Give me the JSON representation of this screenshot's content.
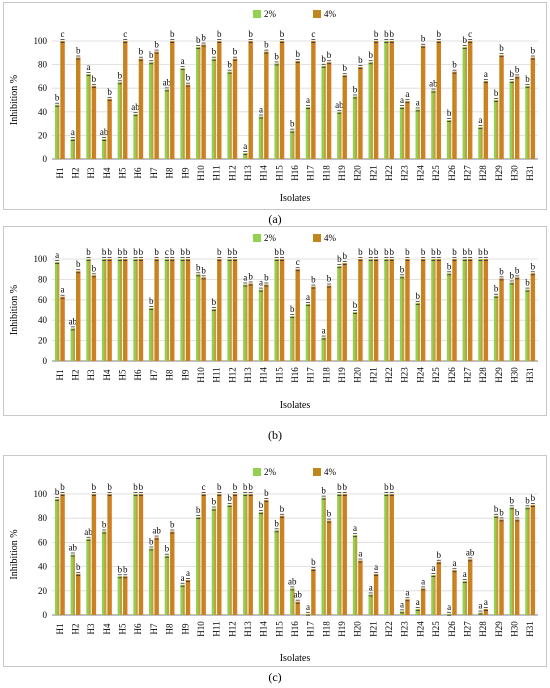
{
  "figure": {
    "captions": [
      "(a)",
      "(b)",
      "(c)"
    ]
  },
  "colors": {
    "s2": "#92d050",
    "s4": "#c0861e",
    "accent": "#e8762c",
    "grid": "#d9d9d9",
    "axis": "#808080",
    "text": "#000000"
  },
  "chart_data": [
    {
      "type": "bar",
      "ylabel": "Inhibition %",
      "xlabel": "Isolates",
      "ylim": [
        0,
        100
      ],
      "yticks": [
        0,
        20,
        40,
        60,
        80,
        100
      ],
      "grid": true,
      "legend_position": "top-center",
      "categories": [
        "H1",
        "H2",
        "H3",
        "H4",
        "H5",
        "H6",
        "H7",
        "H8",
        "H9",
        "H10",
        "H11",
        "H12",
        "H13",
        "H14",
        "H15",
        "H16",
        "H17",
        "H18",
        "H19",
        "H20",
        "H21",
        "H22",
        "H23",
        "H24",
        "H25",
        "H26",
        "H27",
        "H28",
        "H29",
        "H30",
        "H31"
      ],
      "series": [
        {
          "name": "2%",
          "values": [
            46,
            17,
            72,
            17,
            65,
            38,
            82,
            59,
            77,
            95,
            85,
            74,
            5,
            36,
            81,
            24,
            44,
            79,
            40,
            53,
            82,
            100,
            44,
            42,
            58,
            33,
            95,
            27,
            50,
            66,
            62
          ],
          "labels": [
            "b",
            "a",
            "a",
            "ab",
            "b",
            "ab",
            "b",
            "ab",
            "a",
            "b",
            "b",
            "b",
            "a",
            "a",
            "b",
            "b",
            "a",
            "b",
            "ab",
            "b",
            "b",
            "b",
            "a",
            "a",
            "ab",
            "b",
            "b",
            "a",
            "b",
            "b",
            "b"
          ]
        },
        {
          "name": "4%",
          "values": [
            100,
            86,
            62,
            51,
            100,
            85,
            91,
            100,
            63,
            97,
            100,
            85,
            100,
            91,
            100,
            83,
            100,
            82,
            71,
            78,
            100,
            100,
            49,
            96,
            100,
            74,
            100,
            66,
            88,
            70,
            86
          ],
          "labels": [
            "c",
            "b",
            "b",
            "b",
            "c",
            "b",
            "b",
            "b",
            "b",
            "b",
            "b",
            "b",
            "b",
            "b",
            "b",
            "b",
            "c",
            "b",
            "b",
            "b",
            "b",
            "b",
            "a",
            "b",
            "b",
            "b",
            "c",
            "a",
            "b",
            "b",
            "b"
          ]
        }
      ]
    },
    {
      "type": "bar",
      "ylabel": "Inhibition %",
      "xlabel": "Isolates",
      "ylim": [
        0,
        100
      ],
      "yticks": [
        0,
        20,
        40,
        60,
        80,
        100
      ],
      "grid": true,
      "legend_position": "top-center",
      "categories": [
        "H1",
        "H2",
        "H3",
        "H4",
        "H5",
        "H6",
        "H7",
        "H8",
        "H9",
        "H10",
        "H11",
        "H12",
        "H13",
        "H14",
        "H15",
        "H16",
        "H17",
        "H18",
        "H19",
        "H20",
        "H21",
        "H22",
        "H23",
        "H24",
        "H25",
        "H26",
        "H27",
        "H28",
        "H29",
        "H30",
        "H31"
      ],
      "series": [
        {
          "name": "2%",
          "values": [
            97,
            32,
            100,
            100,
            100,
            100,
            52,
            100,
            100,
            85,
            51,
            100,
            75,
            70,
            100,
            44,
            56,
            23,
            93,
            48,
            100,
            100,
            83,
            57,
            100,
            86,
            100,
            100,
            64,
            77,
            70
          ],
          "labels": [
            "a",
            "ab",
            "b",
            "b",
            "b",
            "b",
            "b",
            "c",
            "b",
            "b",
            "b",
            "b",
            "a",
            "a",
            "b",
            "b",
            "a",
            "a",
            "b",
            "b",
            "b",
            "b",
            "b",
            "b",
            "b",
            "b",
            "b",
            "b",
            "b",
            "b",
            "b"
          ]
        },
        {
          "name": "4%",
          "values": [
            63,
            88,
            84,
            100,
            100,
            100,
            100,
            100,
            100,
            82,
            100,
            100,
            76,
            75,
            100,
            90,
            73,
            74,
            96,
            100,
            100,
            100,
            100,
            100,
            100,
            100,
            100,
            100,
            81,
            82,
            86
          ],
          "labels": [
            "a",
            "b",
            "b",
            "b",
            "b",
            "b",
            "b",
            "b",
            "b",
            "b",
            "b",
            "b",
            "b",
            "b",
            "b",
            "c",
            "b",
            "b",
            "b",
            "b",
            "b",
            "b",
            "b",
            "b",
            "b",
            "b",
            "b",
            "b",
            "b",
            "b",
            "b"
          ]
        }
      ]
    },
    {
      "type": "bar",
      "ylabel": "Inhibition %",
      "xlabel": "Isolates",
      "ylim": [
        0,
        100
      ],
      "yticks": [
        0,
        20,
        40,
        60,
        80,
        100
      ],
      "grid": true,
      "legend_position": "top-center",
      "categories": [
        "H1",
        "H2",
        "H3",
        "H4",
        "H5",
        "H6",
        "H7",
        "H8",
        "H9",
        "H10",
        "H11",
        "H12",
        "H13",
        "H14",
        "H15",
        "H16",
        "H17",
        "H18",
        "H19",
        "H20",
        "H21",
        "H22",
        "H23",
        "H24",
        "H25",
        "H26",
        "H27",
        "H28",
        "H29",
        "H30",
        "H31"
      ],
      "series": [
        {
          "name": "2%",
          "values": [
            96,
            50,
            63,
            69,
            32,
            100,
            55,
            49,
            25,
            81,
            88,
            91,
            100,
            85,
            70,
            22,
            1,
            97,
            100,
            66,
            17,
            100,
            3,
            5,
            33,
            1,
            28,
            2,
            82,
            89,
            89
          ],
          "labels": [
            "b",
            "ab",
            "ab",
            "b",
            "b",
            "b",
            "b",
            "b",
            "a",
            "b",
            "b",
            "b",
            "b",
            "b",
            "b",
            "ab",
            "a",
            "b",
            "b",
            "a",
            "a",
            "b",
            "a",
            "a",
            "a",
            "a",
            "a",
            "a",
            "b",
            "b",
            "b"
          ]
        },
        {
          "name": "4%",
          "values": [
            100,
            34,
            100,
            100,
            32,
            100,
            64,
            69,
            29,
            100,
            100,
            100,
            100,
            95,
            82,
            11,
            38,
            78,
            100,
            45,
            34,
            100,
            13,
            22,
            44,
            37,
            46,
            5,
            79,
            79,
            91
          ],
          "labels": [
            "b",
            "b",
            "b",
            "b",
            "b",
            "b",
            "ab",
            "b",
            "a",
            "c",
            "b",
            "b",
            "b",
            "b",
            "b",
            "ab",
            "b",
            "b",
            "b",
            "a",
            "a",
            "b",
            "a",
            "a",
            "b",
            "a",
            "ab",
            "a",
            "b",
            "b",
            "b"
          ]
        }
      ]
    }
  ]
}
